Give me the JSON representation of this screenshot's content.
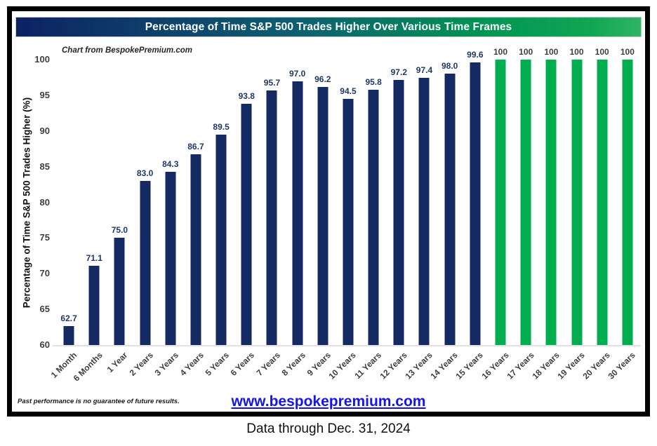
{
  "title": "Percentage of Time S&P 500 Trades Higher Over Various Time Frames",
  "annotation": "Chart from BespokePremium.com",
  "footer": {
    "disclaimer": "Past performance is no guarantee of future results.",
    "link": "www.bespokepremium.com"
  },
  "caption": "Data through Dec. 31, 2024",
  "colors": {
    "navy": "#152a63",
    "green": "#00ae4f",
    "navy_label": "#1f3864",
    "gray_label": "#3f3f3f",
    "link_blue": "#1414f0"
  },
  "chart_data": {
    "type": "bar",
    "title": "Percentage of Time S&P 500 Trades Higher Over Various Time Frames",
    "categories": [
      "1 Month",
      "6 Months",
      "1 Year",
      "2 Years",
      "3 Years",
      "4 Years",
      "5 Years",
      "6 Years",
      "7 Years",
      "8 Years",
      "9 Years",
      "10 Years",
      "11 Years",
      "12 Years",
      "13 Years",
      "14 Years",
      "15 Years",
      "16 Years",
      "17 Years",
      "18 Years",
      "19 Years",
      "20 Years",
      "30 Years"
    ],
    "values": [
      62.7,
      71.1,
      75.0,
      83.0,
      84.3,
      86.7,
      89.5,
      93.8,
      95.7,
      97.0,
      96.2,
      94.5,
      95.8,
      97.2,
      97.4,
      98.0,
      99.6,
      100,
      100,
      100,
      100,
      100,
      100
    ],
    "labels": [
      "62.7",
      "71.1",
      "75.0",
      "83.0",
      "84.3",
      "86.7",
      "89.5",
      "93.8",
      "95.7",
      "97.0",
      "96.2",
      "94.5",
      "95.8",
      "97.2",
      "97.4",
      "98.0",
      "99.6",
      "100",
      "100",
      "100",
      "100",
      "100",
      "100"
    ],
    "bar_color_rule": "green when value equals 100, otherwise navy",
    "xlabel": "",
    "ylabel": "Percentage of Time S&P 500 Trades Higher (%)",
    "ylim": [
      60,
      100
    ],
    "yticks": [
      60,
      65,
      70,
      75,
      80,
      85,
      90,
      95,
      100
    ],
    "grid": false,
    "legend": false
  }
}
